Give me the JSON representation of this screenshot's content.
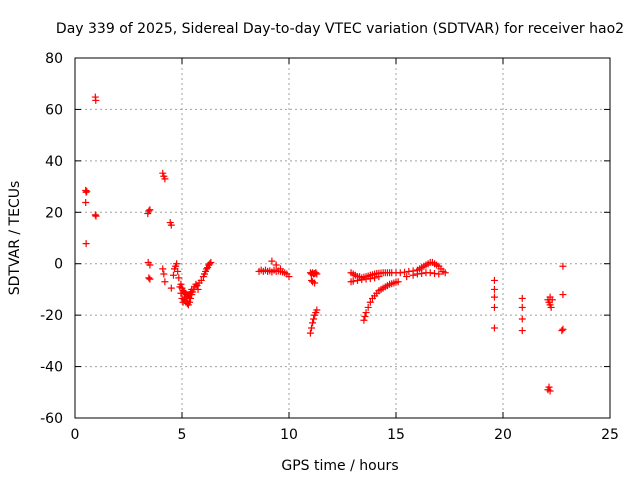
{
  "chart_data": {
    "type": "scatter",
    "title": "Day 339 of 2025, Sidereal Day-to-day VTEC variation (SDTVAR) for receiver hao2",
    "xlabel": "GPS time / hours",
    "ylabel": "SDTVAR / TECUs",
    "xlim": [
      0,
      25
    ],
    "ylim": [
      -60,
      80
    ],
    "xticks": [
      0,
      5,
      10,
      15,
      20,
      25
    ],
    "yticks": [
      -60,
      -40,
      -20,
      0,
      20,
      40,
      60,
      80
    ],
    "xtick_labels": [
      "0",
      "5",
      "10",
      "15",
      "20",
      "25"
    ],
    "ytick_labels": [
      "-60",
      "-40",
      "-20",
      "0",
      "20",
      "40",
      "60",
      "80"
    ],
    "grid": true,
    "marker": "+",
    "color": "#ff0000",
    "series": [
      {
        "name": "hao2",
        "points": [
          [
            0.5,
            28.5
          ],
          [
            0.52,
            27.8
          ],
          [
            0.55,
            28.2
          ],
          [
            0.5,
            23.8
          ],
          [
            0.52,
            7.8
          ],
          [
            0.95,
            64.8
          ],
          [
            0.97,
            63.5
          ],
          [
            0.95,
            19.0
          ],
          [
            0.98,
            18.5
          ],
          [
            3.4,
            19.5
          ],
          [
            3.45,
            20.5
          ],
          [
            3.5,
            21.0
          ],
          [
            3.42,
            0.5
          ],
          [
            3.5,
            -0.5
          ],
          [
            3.45,
            -5.5
          ],
          [
            3.5,
            -6.0
          ],
          [
            4.1,
            35.2
          ],
          [
            4.15,
            34.0
          ],
          [
            4.2,
            33.0
          ],
          [
            4.1,
            -2.0
          ],
          [
            4.15,
            -4.0
          ],
          [
            4.2,
            -7.0
          ],
          [
            4.45,
            16.0
          ],
          [
            4.5,
            15.0
          ],
          [
            4.5,
            -9.5
          ],
          [
            4.6,
            -4.5
          ],
          [
            4.65,
            -2.0
          ],
          [
            4.7,
            -1.0
          ],
          [
            4.75,
            0.0
          ],
          [
            4.8,
            -3.0
          ],
          [
            4.85,
            -5.5
          ],
          [
            4.9,
            -9.0
          ],
          [
            4.95,
            -11.5
          ],
          [
            5.0,
            -13.5
          ],
          [
            5.05,
            -15.0
          ],
          [
            5.1,
            -14.0
          ],
          [
            5.15,
            -13.0
          ],
          [
            5.2,
            -14.5
          ],
          [
            5.25,
            -15.5
          ],
          [
            5.3,
            -16.0
          ],
          [
            5.35,
            -15.0
          ],
          [
            5.4,
            -13.5
          ],
          [
            5.45,
            -12.0
          ],
          [
            5.5,
            -11.0
          ],
          [
            5.55,
            -10.0
          ],
          [
            5.6,
            -9.0
          ],
          [
            5.65,
            -8.0
          ],
          [
            5.7,
            -8.5
          ],
          [
            5.75,
            -10.0
          ],
          [
            5.8,
            -7.5
          ],
          [
            4.95,
            -8.0
          ],
          [
            5.0,
            -9.5
          ],
          [
            5.05,
            -10.5
          ],
          [
            5.1,
            -11.0
          ],
          [
            5.15,
            -11.5
          ],
          [
            5.2,
            -12.0
          ],
          [
            5.25,
            -12.5
          ],
          [
            5.3,
            -12.5
          ],
          [
            5.35,
            -12.0
          ],
          [
            5.4,
            -11.0
          ],
          [
            5.45,
            -10.0
          ],
          [
            5.9,
            -6.5
          ],
          [
            6.0,
            -5.0
          ],
          [
            6.05,
            -4.0
          ],
          [
            6.1,
            -3.0
          ],
          [
            6.15,
            -2.0
          ],
          [
            6.2,
            -1.5
          ],
          [
            6.25,
            -0.5
          ],
          [
            6.3,
            0.0
          ],
          [
            6.35,
            0.5
          ],
          [
            8.6,
            -3.0
          ],
          [
            8.7,
            -2.5
          ],
          [
            8.8,
            -3.0
          ],
          [
            8.9,
            -2.5
          ],
          [
            9.0,
            -3.0
          ],
          [
            9.1,
            -2.8
          ],
          [
            9.2,
            -3.2
          ],
          [
            9.3,
            -2.5
          ],
          [
            9.4,
            -3.0
          ],
          [
            9.5,
            -2.8
          ],
          [
            9.6,
            -3.0
          ],
          [
            9.7,
            -3.2
          ],
          [
            9.8,
            -3.5
          ],
          [
            9.9,
            -4.0
          ],
          [
            10.0,
            -5.0
          ],
          [
            9.2,
            1.0
          ],
          [
            9.4,
            -0.5
          ],
          [
            9.6,
            -2.0
          ],
          [
            11.0,
            -3.5
          ],
          [
            11.05,
            -4.0
          ],
          [
            11.1,
            -3.5
          ],
          [
            11.15,
            -4.0
          ],
          [
            11.2,
            -3.8
          ],
          [
            11.25,
            -3.5
          ],
          [
            11.3,
            -4.0
          ],
          [
            11.05,
            -6.5
          ],
          [
            11.1,
            -7.0
          ],
          [
            11.2,
            -7.5
          ],
          [
            11.0,
            -27.0
          ],
          [
            11.05,
            -25.0
          ],
          [
            11.1,
            -23.0
          ],
          [
            11.15,
            -21.5
          ],
          [
            11.2,
            -20.0
          ],
          [
            11.25,
            -19.0
          ],
          [
            11.3,
            -18.0
          ],
          [
            12.9,
            -3.5
          ],
          [
            13.0,
            -4.0
          ],
          [
            13.1,
            -4.5
          ],
          [
            13.2,
            -5.0
          ],
          [
            13.3,
            -5.0
          ],
          [
            13.4,
            -5.5
          ],
          [
            13.5,
            -5.2
          ],
          [
            13.6,
            -5.0
          ],
          [
            13.7,
            -4.8
          ],
          [
            13.8,
            -4.5
          ],
          [
            13.9,
            -4.3
          ],
          [
            14.0,
            -4.0
          ],
          [
            14.1,
            -3.8
          ],
          [
            14.2,
            -3.7
          ],
          [
            14.3,
            -3.6
          ],
          [
            14.4,
            -3.5
          ],
          [
            14.5,
            -3.5
          ],
          [
            14.6,
            -3.5
          ],
          [
            14.7,
            -3.5
          ],
          [
            14.8,
            -3.5
          ],
          [
            12.9,
            -7.0
          ],
          [
            13.0,
            -6.8
          ],
          [
            13.2,
            -6.5
          ],
          [
            13.4,
            -6.2
          ],
          [
            13.6,
            -6.0
          ],
          [
            13.8,
            -5.8
          ],
          [
            14.0,
            -5.5
          ],
          [
            14.2,
            -5.0
          ],
          [
            13.5,
            -22.0
          ],
          [
            13.55,
            -20.5
          ],
          [
            13.6,
            -19.0
          ],
          [
            13.7,
            -17.0
          ],
          [
            13.8,
            -15.0
          ],
          [
            13.9,
            -13.5
          ],
          [
            14.0,
            -12.5
          ],
          [
            14.1,
            -11.5
          ],
          [
            14.2,
            -10.5
          ],
          [
            14.3,
            -10.0
          ],
          [
            14.4,
            -9.5
          ],
          [
            14.5,
            -9.0
          ],
          [
            14.6,
            -8.5
          ],
          [
            14.7,
            -8.0
          ],
          [
            14.8,
            -7.8
          ],
          [
            14.9,
            -7.5
          ],
          [
            15.0,
            -7.2
          ],
          [
            15.1,
            -7.0
          ],
          [
            15.0,
            -3.5
          ],
          [
            15.2,
            -3.5
          ],
          [
            15.4,
            -3.3
          ],
          [
            15.6,
            -3.0
          ],
          [
            15.8,
            -2.8
          ],
          [
            16.0,
            -2.5
          ],
          [
            16.1,
            -2.0
          ],
          [
            16.2,
            -1.5
          ],
          [
            16.3,
            -1.0
          ],
          [
            16.4,
            -0.5
          ],
          [
            16.5,
            0.0
          ],
          [
            16.6,
            0.5
          ],
          [
            16.7,
            0.5
          ],
          [
            16.8,
            0.0
          ],
          [
            16.9,
            -0.5
          ],
          [
            17.0,
            -1.0
          ],
          [
            17.1,
            -2.0
          ],
          [
            17.2,
            -3.0
          ],
          [
            17.3,
            -3.5
          ],
          [
            15.5,
            -5.0
          ],
          [
            15.8,
            -4.5
          ],
          [
            16.0,
            -4.0
          ],
          [
            16.2,
            -3.8
          ],
          [
            16.4,
            -3.5
          ],
          [
            16.6,
            -3.5
          ],
          [
            16.8,
            -3.8
          ],
          [
            17.0,
            -4.0
          ],
          [
            19.6,
            -6.5
          ],
          [
            19.6,
            -10.0
          ],
          [
            19.6,
            -13.0
          ],
          [
            19.6,
            -17.0
          ],
          [
            19.6,
            -25.0
          ],
          [
            20.9,
            -13.5
          ],
          [
            20.9,
            -17.0
          ],
          [
            20.9,
            -21.5
          ],
          [
            20.9,
            -26.0
          ],
          [
            22.1,
            -14.0
          ],
          [
            22.15,
            -15.0
          ],
          [
            22.2,
            -16.0
          ],
          [
            22.25,
            -17.0
          ],
          [
            22.3,
            -14.0
          ],
          [
            22.2,
            -13.0
          ],
          [
            22.1,
            -49.0
          ],
          [
            22.15,
            -48.0
          ],
          [
            22.2,
            -49.5
          ],
          [
            22.8,
            -1.0
          ],
          [
            22.8,
            -12.0
          ],
          [
            22.75,
            -26.0
          ],
          [
            22.8,
            -25.5
          ]
        ]
      }
    ]
  }
}
